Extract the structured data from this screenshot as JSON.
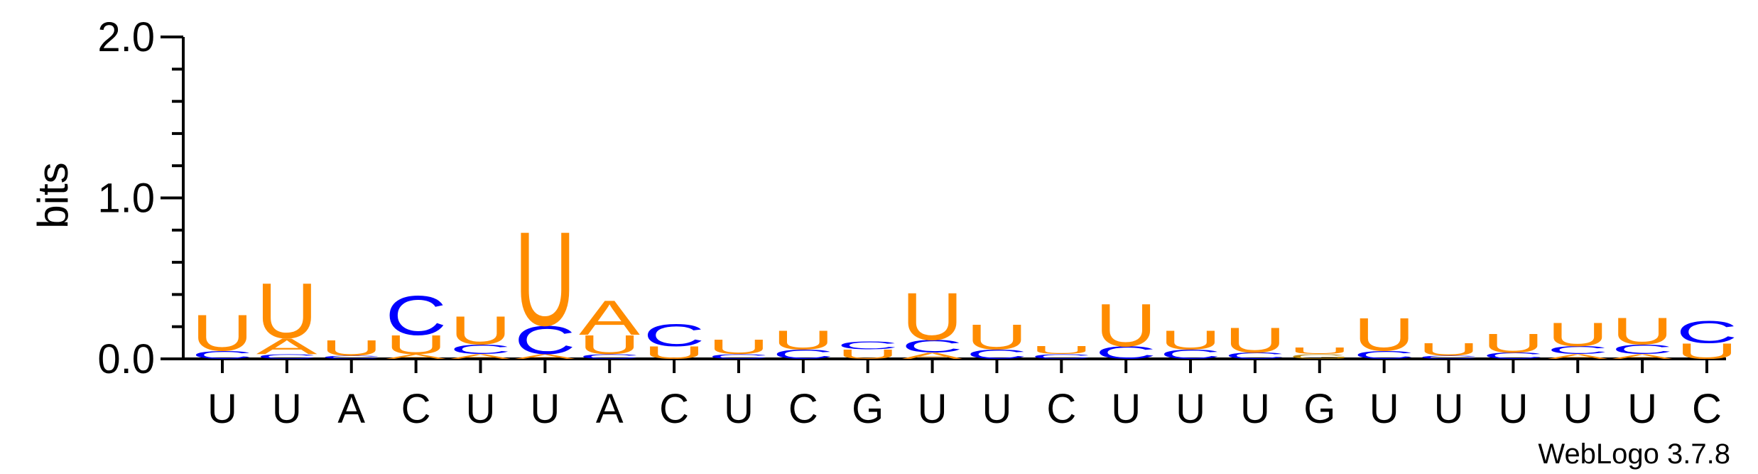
{
  "chart_data": {
    "type": "sequence-logo",
    "ylabel": "bits",
    "ylim": [
      0,
      2.0
    ],
    "yticks": [
      {
        "value": 0.0,
        "label": "0.0"
      },
      {
        "value": 1.0,
        "label": "1.0"
      },
      {
        "value": 2.0,
        "label": "2.0"
      }
    ],
    "categories": [
      "U",
      "U",
      "A",
      "C",
      "U",
      "U",
      "A",
      "C",
      "U",
      "C",
      "G",
      "U",
      "U",
      "C",
      "U",
      "U",
      "U",
      "G",
      "U",
      "U",
      "U",
      "U",
      "U",
      "C"
    ],
    "colors": {
      "U": "#ff8c00",
      "A": "#ff8c00",
      "C": "#0000ff",
      "G": "#b8860b"
    },
    "positions": [
      {
        "stack": [
          {
            "base": "C",
            "bits": 0.05
          },
          {
            "base": "U",
            "bits": 0.23
          }
        ]
      },
      {
        "stack": [
          {
            "base": "C",
            "bits": 0.03
          },
          {
            "base": "A",
            "bits": 0.1
          },
          {
            "base": "U",
            "bits": 0.35
          }
        ]
      },
      {
        "stack": [
          {
            "base": "C",
            "bits": 0.02
          },
          {
            "base": "U",
            "bits": 0.1
          }
        ]
      },
      {
        "stack": [
          {
            "base": "A",
            "bits": 0.03
          },
          {
            "base": "U",
            "bits": 0.12
          },
          {
            "base": "C",
            "bits": 0.25
          }
        ]
      },
      {
        "stack": [
          {
            "base": "A",
            "bits": 0.03
          },
          {
            "base": "C",
            "bits": 0.06
          },
          {
            "base": "U",
            "bits": 0.18
          }
        ]
      },
      {
        "stack": [
          {
            "base": "A",
            "bits": 0.03
          },
          {
            "base": "C",
            "bits": 0.18
          },
          {
            "base": "U",
            "bits": 0.6
          }
        ]
      },
      {
        "stack": [
          {
            "base": "C",
            "bits": 0.03
          },
          {
            "base": "U",
            "bits": 0.12
          },
          {
            "base": "A",
            "bits": 0.22
          }
        ]
      },
      {
        "stack": [
          {
            "base": "U",
            "bits": 0.08
          },
          {
            "base": "C",
            "bits": 0.14
          }
        ]
      },
      {
        "stack": [
          {
            "base": "C",
            "bits": 0.03
          },
          {
            "base": "U",
            "bits": 0.09
          }
        ]
      },
      {
        "stack": [
          {
            "base": "C",
            "bits": 0.06
          },
          {
            "base": "U",
            "bits": 0.12
          }
        ]
      },
      {
        "stack": [
          {
            "base": "U",
            "bits": 0.06
          },
          {
            "base": "C",
            "bits": 0.05
          }
        ]
      },
      {
        "stack": [
          {
            "base": "A",
            "bits": 0.04
          },
          {
            "base": "C",
            "bits": 0.08
          },
          {
            "base": "U",
            "bits": 0.3
          }
        ]
      },
      {
        "stack": [
          {
            "base": "C",
            "bits": 0.06
          },
          {
            "base": "U",
            "bits": 0.16
          }
        ]
      },
      {
        "stack": [
          {
            "base": "C",
            "bits": 0.03
          },
          {
            "base": "U",
            "bits": 0.05
          }
        ]
      },
      {
        "stack": [
          {
            "base": "C",
            "bits": 0.08
          },
          {
            "base": "U",
            "bits": 0.27
          }
        ]
      },
      {
        "stack": [
          {
            "base": "C",
            "bits": 0.06
          },
          {
            "base": "U",
            "bits": 0.12
          }
        ]
      },
      {
        "stack": [
          {
            "base": "C",
            "bits": 0.04
          },
          {
            "base": "U",
            "bits": 0.16
          }
        ]
      },
      {
        "stack": [
          {
            "base": "G",
            "bits": 0.03
          },
          {
            "base": "U",
            "bits": 0.04
          }
        ]
      },
      {
        "stack": [
          {
            "base": "C",
            "bits": 0.05
          },
          {
            "base": "U",
            "bits": 0.21
          }
        ]
      },
      {
        "stack": [
          {
            "base": "C",
            "bits": 0.02
          },
          {
            "base": "U",
            "bits": 0.08
          }
        ]
      },
      {
        "stack": [
          {
            "base": "C",
            "bits": 0.04
          },
          {
            "base": "U",
            "bits": 0.12
          }
        ]
      },
      {
        "stack": [
          {
            "base": "A",
            "bits": 0.03
          },
          {
            "base": "C",
            "bits": 0.05
          },
          {
            "base": "U",
            "bits": 0.15
          }
        ]
      },
      {
        "stack": [
          {
            "base": "A",
            "bits": 0.03
          },
          {
            "base": "C",
            "bits": 0.06
          },
          {
            "base": "U",
            "bits": 0.17
          }
        ]
      },
      {
        "stack": [
          {
            "base": "U",
            "bits": 0.1
          },
          {
            "base": "C",
            "bits": 0.14
          }
        ]
      }
    ]
  },
  "watermark": "WebLogo 3.7.8"
}
